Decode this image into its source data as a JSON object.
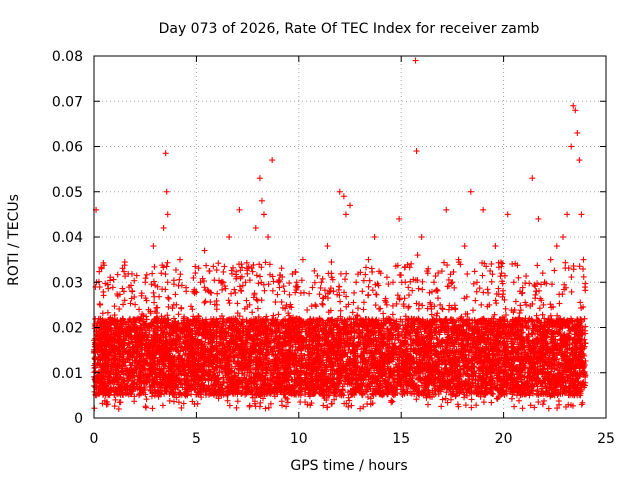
{
  "chart_data": {
    "type": "scatter",
    "title": "Day 073 of 2026, Rate Of TEC Index for receiver zamb",
    "xlabel": "GPS time / hours",
    "ylabel": "ROTI / TECUs",
    "xlim": [
      0,
      25
    ],
    "ylim": [
      0,
      0.08
    ],
    "xticks": [
      0,
      5,
      10,
      15,
      20,
      25
    ],
    "xtick_labels": [
      "0",
      "5",
      "10",
      "15",
      "20",
      "25"
    ],
    "yticks": [
      0,
      0.01,
      0.02,
      0.03,
      0.04,
      0.05,
      0.06,
      0.07,
      0.08
    ],
    "ytick_labels": [
      "0",
      "0.01",
      "0.02",
      "0.03",
      "0.04",
      "0.05",
      "0.06",
      "0.07",
      "0.08"
    ],
    "grid": true,
    "marker": "plus",
    "color": "#ff0000",
    "series": [
      {
        "x": [
          0.05,
          0.1,
          0.12,
          0.2,
          0.3,
          0.4,
          0.5,
          0.6,
          0.8,
          1.0,
          1.2,
          1.5,
          1.8,
          2.0,
          2.2,
          2.5,
          2.7,
          2.9,
          3.1,
          3.4,
          3.5,
          3.55,
          3.6,
          3.6,
          3.7,
          3.9,
          4.2,
          4.5,
          4.8,
          5.0,
          5.2,
          5.4,
          5.6,
          5.8,
          6.0,
          6.3,
          6.6,
          6.9,
          7.1,
          7.2,
          7.4,
          7.6,
          7.9,
          8.1,
          8.2,
          8.3,
          8.5,
          8.7,
          9.0,
          9.3,
          9.6,
          9.9,
          10.2,
          10.5,
          10.8,
          11.1,
          11.4,
          11.7,
          12.0,
          12.2,
          12.3,
          12.5,
          12.8,
          13.1,
          13.4,
          13.7,
          14.0,
          14.3,
          14.6,
          14.9,
          15.2,
          15.5,
          15.7,
          15.75,
          15.8,
          16.0,
          16.3,
          16.6,
          16.9,
          17.2,
          17.5,
          17.8,
          18.1,
          18.4,
          18.7,
          19.0,
          19.3,
          19.6,
          19.9,
          20.2,
          20.5,
          20.8,
          21.1,
          21.4,
          21.7,
          22.0,
          22.3,
          22.6,
          22.9,
          23.1,
          23.3,
          23.4,
          23.5,
          23.6,
          23.7,
          23.8,
          23.9
        ],
        "y": [
          0.012,
          0.046,
          0.03,
          0.018,
          0.025,
          0.01,
          0.02,
          0.015,
          0.022,
          0.012,
          0.018,
          0.026,
          0.014,
          0.02,
          0.024,
          0.03,
          0.016,
          0.038,
          0.022,
          0.042,
          0.0585,
          0.05,
          0.045,
          0.03,
          0.02,
          0.025,
          0.035,
          0.028,
          0.018,
          0.022,
          0.03,
          0.037,
          0.028,
          0.02,
          0.025,
          0.03,
          0.04,
          0.022,
          0.046,
          0.034,
          0.03,
          0.025,
          0.042,
          0.053,
          0.048,
          0.045,
          0.04,
          0.057,
          0.03,
          0.028,
          0.022,
          0.03,
          0.035,
          0.02,
          0.025,
          0.03,
          0.038,
          0.028,
          0.05,
          0.049,
          0.045,
          0.047,
          0.03,
          0.028,
          0.035,
          0.04,
          0.032,
          0.025,
          0.03,
          0.044,
          0.03,
          0.022,
          0.079,
          0.059,
          0.036,
          0.04,
          0.032,
          0.03,
          0.025,
          0.046,
          0.03,
          0.035,
          0.038,
          0.05,
          0.03,
          0.046,
          0.025,
          0.038,
          0.032,
          0.045,
          0.03,
          0.028,
          0.025,
          0.053,
          0.044,
          0.03,
          0.035,
          0.038,
          0.04,
          0.045,
          0.06,
          0.069,
          0.068,
          0.063,
          0.057,
          0.045,
          0.035
        ]
      }
    ],
    "baseline_band": {
      "x_start": 0,
      "x_end": 24,
      "y_low": 0.002,
      "y_high": 0.027,
      "y_core_low": 0.005,
      "y_core_high": 0.022,
      "point_count": 9000
    }
  }
}
